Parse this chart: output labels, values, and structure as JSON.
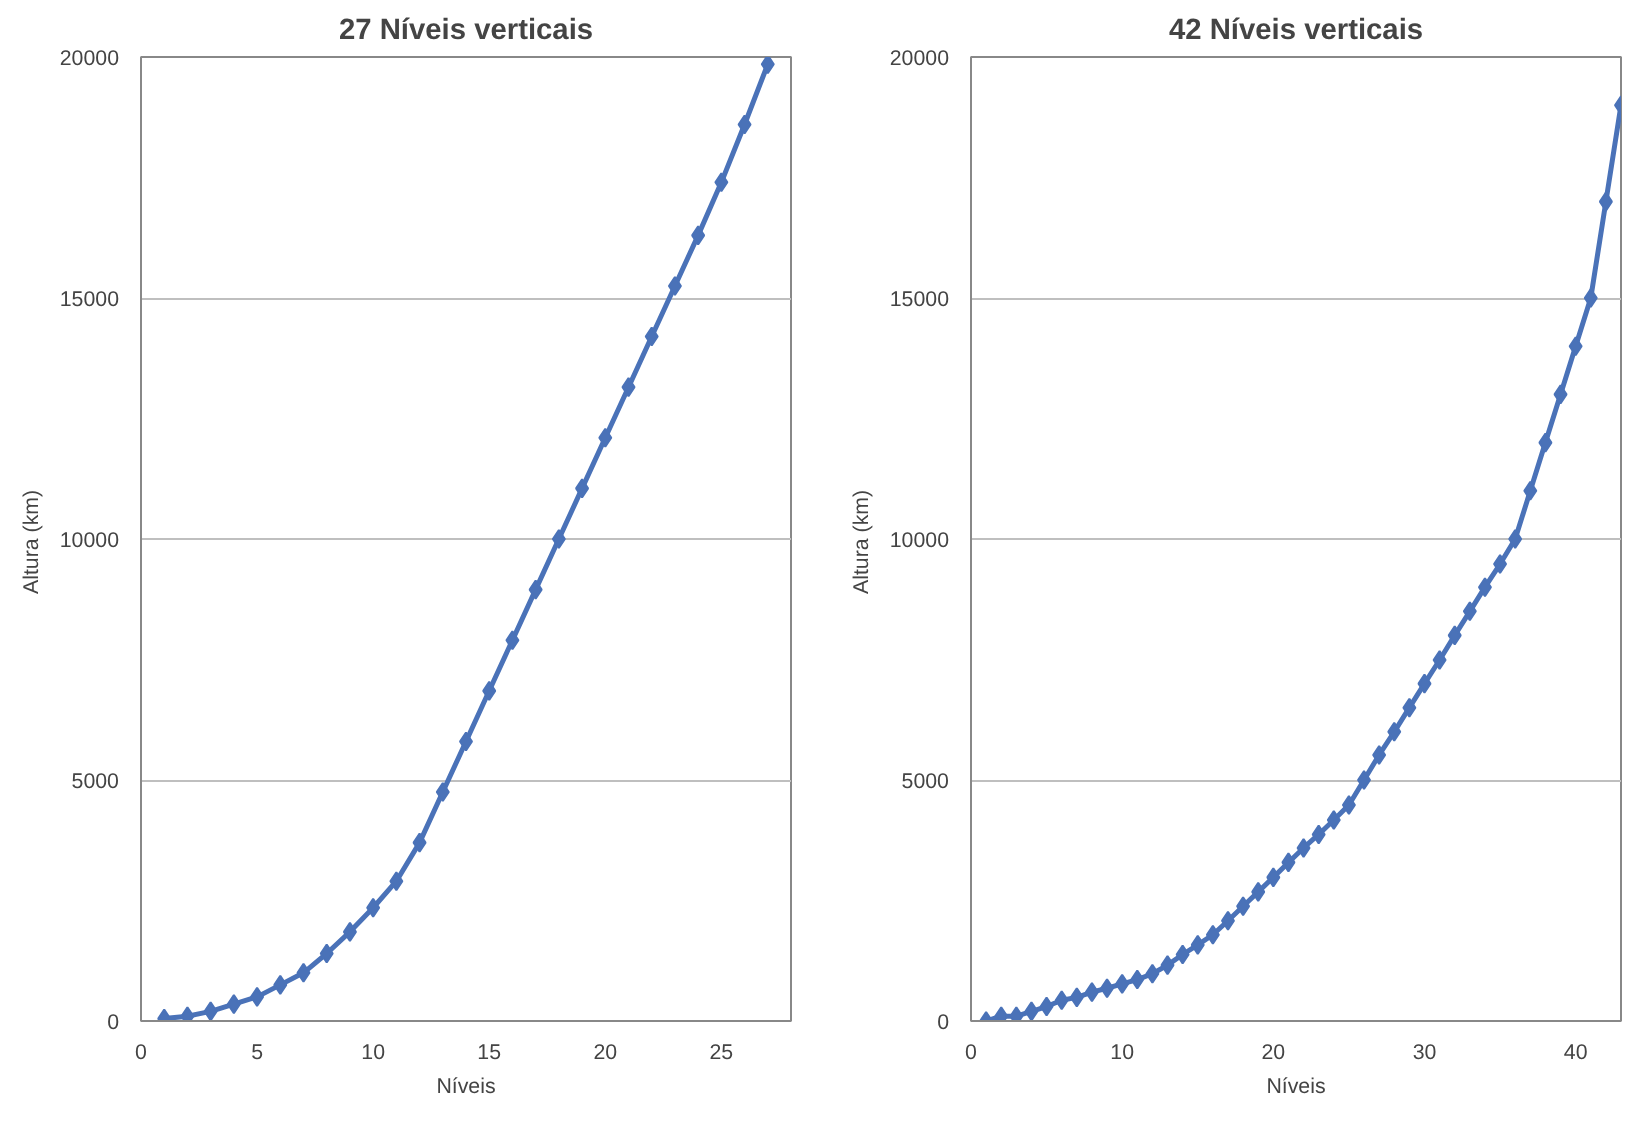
{
  "chart_data": [
    {
      "type": "line",
      "title": "27 Níveis verticais",
      "xlabel": "Níveis",
      "ylabel": "Altura  (km)",
      "marker": "diamond",
      "line_style": "solid",
      "grid": "y",
      "x": [
        1,
        2,
        3,
        4,
        5,
        6,
        7,
        8,
        9,
        10,
        11,
        12,
        13,
        14,
        15,
        16,
        17,
        18,
        19,
        20,
        21,
        22,
        23,
        24,
        25,
        26,
        27
      ],
      "series": [
        {
          "color": "#4a72b8",
          "values": [
            50,
            100,
            200,
            350,
            500,
            750,
            1000,
            1400,
            1850,
            2350,
            2900,
            3700,
            4750,
            5800,
            6850,
            7900,
            8950,
            10000,
            11050,
            12100,
            13150,
            14200,
            15250,
            16300,
            17400,
            18600,
            19850
          ]
        }
      ],
      "xlim": [
        0,
        28
      ],
      "xticks": [
        0,
        5,
        10,
        15,
        20,
        25
      ],
      "ylim": [
        0,
        20000
      ],
      "yticks": [
        0,
        5000,
        10000,
        15000,
        20000
      ]
    },
    {
      "type": "line",
      "title": "42 Níveis verticais",
      "xlabel": "Níveis",
      "ylabel": "Altura  (km)",
      "marker": "diamond",
      "line_style": "solid",
      "grid": "y",
      "x": [
        1,
        2,
        3,
        4,
        5,
        6,
        7,
        8,
        9,
        10,
        11,
        12,
        13,
        14,
        15,
        16,
        17,
        18,
        19,
        20,
        21,
        22,
        23,
        24,
        25,
        26,
        27,
        28,
        29,
        30,
        31,
        32,
        33,
        34,
        35,
        36,
        37,
        38,
        39,
        40,
        41,
        42,
        43
      ],
      "series": [
        {
          "color": "#4a72b8",
          "values": [
            0,
            100,
            100,
            200,
            300,
            430,
            490,
            600,
            680,
            770,
            860,
            980,
            1160,
            1380,
            1580,
            1790,
            2080,
            2380,
            2680,
            2980,
            3290,
            3590,
            3870,
            4170,
            4480,
            5000,
            5520,
            6000,
            6500,
            7000,
            7490,
            8000,
            8500,
            9000,
            9480,
            10000,
            11000,
            12000,
            13000,
            14000,
            15000,
            17000,
            19000
          ]
        }
      ],
      "xlim": [
        0,
        43
      ],
      "xticks": [
        0,
        10,
        20,
        30,
        40
      ],
      "ylim": [
        0,
        20000
      ],
      "yticks": [
        0,
        5000,
        10000,
        15000,
        20000
      ]
    }
  ]
}
